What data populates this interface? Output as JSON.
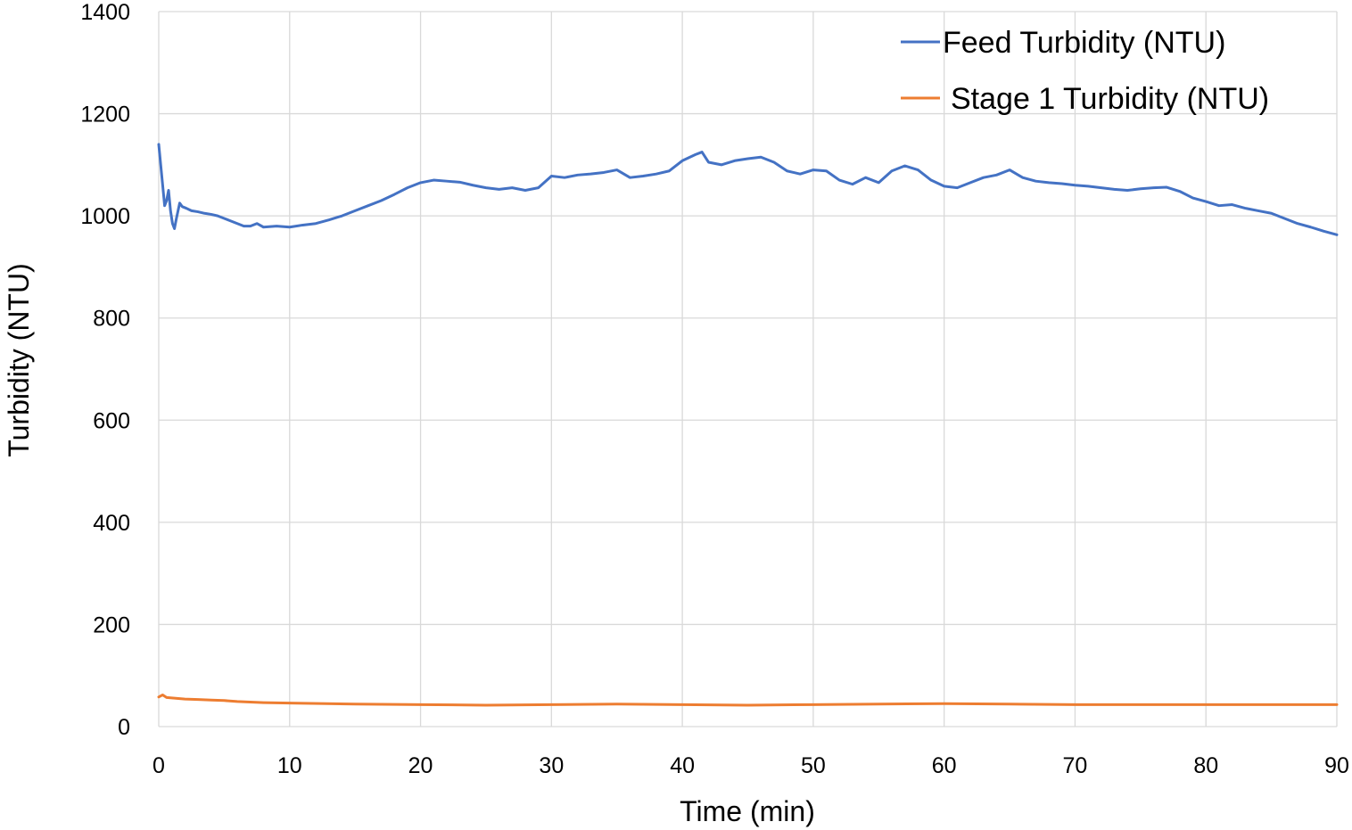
{
  "chart_data": {
    "type": "line",
    "title": "",
    "xlabel": "Time (min)",
    "ylabel": "Turbidity (NTU)",
    "xlim": [
      0,
      90
    ],
    "ylim": [
      0,
      1400
    ],
    "xticks": [
      0,
      10,
      20,
      30,
      40,
      50,
      60,
      70,
      80,
      90
    ],
    "yticks": [
      0,
      200,
      400,
      600,
      800,
      1000,
      1200,
      1400
    ],
    "grid": true,
    "legend": "top-right",
    "series": [
      {
        "name": "Feed Turbidity (NTU)",
        "color": "#4472c4",
        "x": [
          0,
          0.15,
          0.3,
          0.45,
          0.6,
          0.75,
          0.9,
          1.05,
          1.2,
          1.35,
          1.6,
          1.8,
          2.1,
          2.5,
          3,
          3.5,
          4,
          4.5,
          5,
          5.5,
          6,
          6.5,
          7,
          7.5,
          8,
          9,
          10,
          11,
          12,
          13,
          14,
          15,
          16,
          17,
          18,
          19,
          20,
          21,
          22,
          23,
          24,
          25,
          26,
          27,
          28,
          29,
          30,
          31,
          32,
          33,
          34,
          35,
          36,
          37,
          38,
          39,
          40,
          41,
          41.5,
          42,
          43,
          44,
          45,
          46,
          47,
          48,
          49,
          50,
          51,
          52,
          53,
          54,
          55,
          56,
          57,
          58,
          59,
          60,
          61,
          62,
          63,
          64,
          65,
          66,
          67,
          68,
          69,
          70,
          71,
          72,
          73,
          74,
          75,
          76,
          77,
          78,
          79,
          80,
          81,
          82,
          83,
          84,
          85,
          86,
          87,
          88,
          89,
          90
        ],
        "values": [
          1140,
          1100,
          1060,
          1020,
          1030,
          1050,
          1010,
          985,
          975,
          995,
          1025,
          1018,
          1015,
          1010,
          1008,
          1005,
          1003,
          1000,
          995,
          990,
          985,
          980,
          980,
          985,
          978,
          980,
          978,
          982,
          985,
          992,
          1000,
          1010,
          1020,
          1030,
          1042,
          1055,
          1065,
          1070,
          1068,
          1066,
          1060,
          1055,
          1052,
          1055,
          1050,
          1055,
          1078,
          1075,
          1080,
          1082,
          1085,
          1090,
          1075,
          1078,
          1082,
          1088,
          1108,
          1120,
          1125,
          1105,
          1100,
          1108,
          1112,
          1115,
          1105,
          1088,
          1082,
          1090,
          1088,
          1070,
          1062,
          1075,
          1065,
          1088,
          1098,
          1090,
          1070,
          1058,
          1055,
          1065,
          1075,
          1080,
          1090,
          1075,
          1068,
          1065,
          1063,
          1060,
          1058,
          1055,
          1052,
          1050,
          1053,
          1055,
          1056,
          1048,
          1035,
          1028,
          1020,
          1022,
          1015,
          1010,
          1005,
          995,
          985,
          978,
          970,
          963
        ]
      },
      {
        "name": "Stage 1 Turbidity (NTU)",
        "color": "#ed7d31",
        "x": [
          0,
          0.3,
          0.6,
          1,
          2,
          3,
          4,
          5,
          6,
          8,
          10,
          15,
          20,
          25,
          30,
          35,
          40,
          45,
          50,
          55,
          60,
          65,
          70,
          75,
          80,
          85,
          90
        ],
        "values": [
          58,
          62,
          57,
          56,
          54,
          53,
          52,
          51,
          49,
          47,
          46,
          44,
          43,
          42,
          43,
          44,
          43,
          42,
          43,
          44,
          45,
          44,
          43,
          43,
          43,
          43,
          43
        ]
      }
    ]
  }
}
